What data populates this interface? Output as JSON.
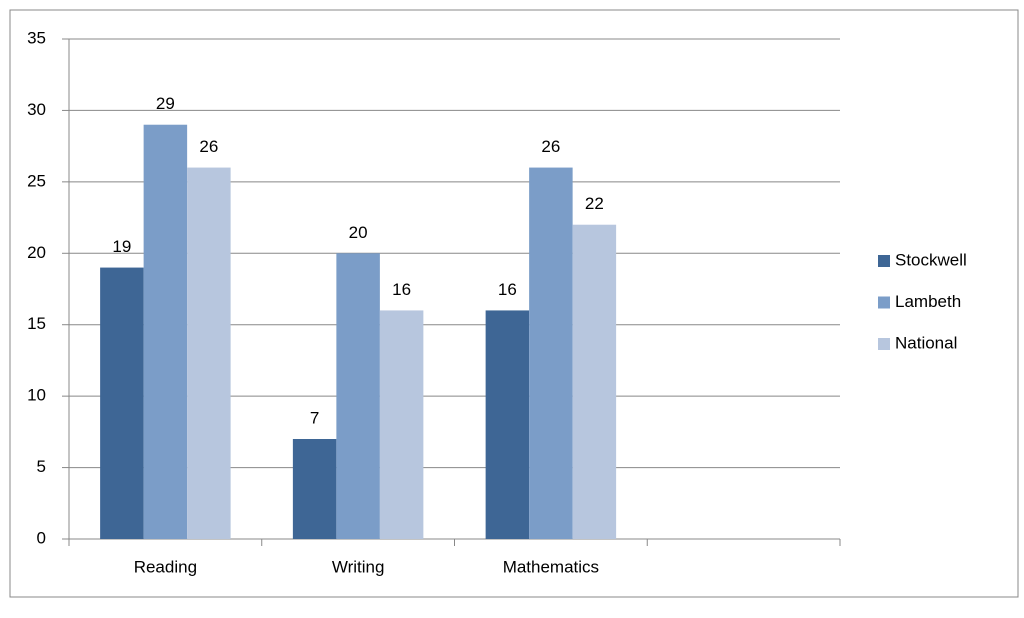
{
  "chart_data": {
    "type": "bar",
    "categories": [
      "Reading",
      "Writing",
      "Mathematics",
      null
    ],
    "series": [
      {
        "name": "Stockwell",
        "color": "#3e6695",
        "values": [
          19,
          7,
          16,
          null
        ]
      },
      {
        "name": "Lambeth",
        "color": "#7b9dc8",
        "values": [
          29,
          20,
          26,
          null
        ]
      },
      {
        "name": "National",
        "color": "#b7c6de",
        "values": [
          26,
          16,
          22,
          null
        ]
      }
    ],
    "ylim": [
      0,
      35
    ],
    "yticks": [
      0,
      5,
      10,
      15,
      20,
      25,
      30,
      35
    ],
    "grid": true,
    "legend": "right"
  }
}
